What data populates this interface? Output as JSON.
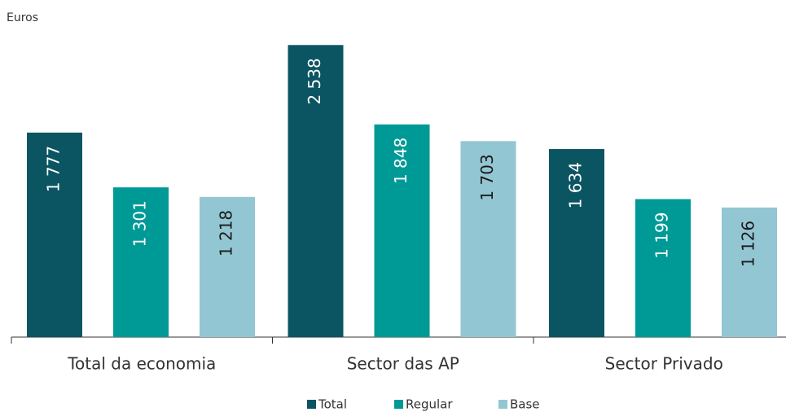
{
  "chart_data": {
    "type": "bar",
    "y_label": "Euros",
    "categories": [
      "Total da economia",
      "Sector das AP",
      "Sector Privado"
    ],
    "series": [
      {
        "name": "Total",
        "color": "#0b5563",
        "values": [
          1777,
          2538,
          1634
        ],
        "value_labels": [
          "1 777",
          "2 538",
          "1 634"
        ]
      },
      {
        "name": "Regular",
        "color": "#009a96",
        "values": [
          1301,
          1848,
          1199
        ],
        "value_labels": [
          "1 301",
          "1 848",
          "1 199"
        ]
      },
      {
        "name": "Base",
        "color": "#93c6d3",
        "values": [
          1218,
          1703,
          1126
        ],
        "value_labels": [
          "1 218",
          "1 703",
          "1 126"
        ]
      }
    ],
    "ylim": [
      0,
      2540
    ],
    "legend": "bottom"
  }
}
